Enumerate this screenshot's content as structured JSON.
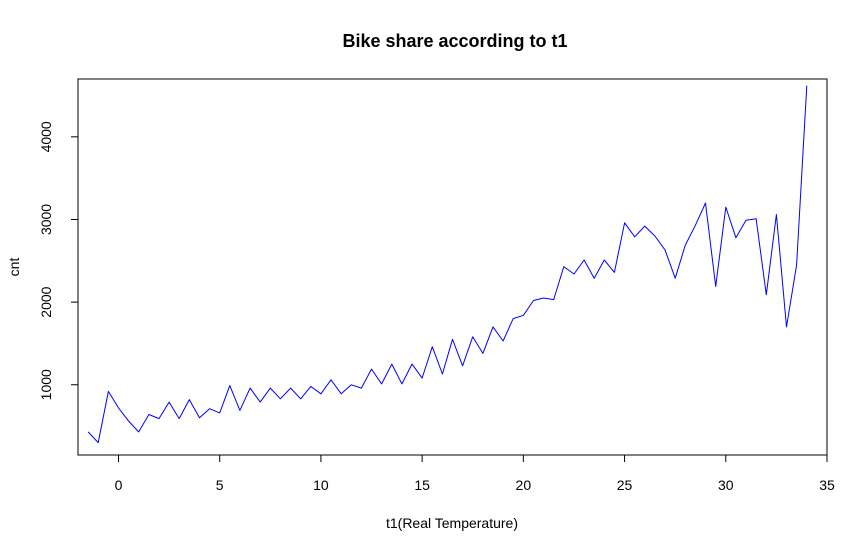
{
  "chart_data": {
    "type": "line",
    "title": "Bike share according to t1",
    "xlabel": "t1(Real Temperature)",
    "ylabel": "cnt",
    "xlim": [
      -2,
      35
    ],
    "ylim": [
      150,
      4700
    ],
    "xticks": [
      0,
      5,
      10,
      15,
      20,
      25,
      30,
      35
    ],
    "yticks": [
      1000,
      2000,
      3000,
      4000
    ],
    "grid": false,
    "series": [
      {
        "color": "#0000ff",
        "x": [
          -1.5,
          -1,
          -0.5,
          0,
          0.5,
          1,
          1.5,
          2,
          2.5,
          3,
          3.5,
          4,
          4.5,
          5,
          5.5,
          6,
          6.5,
          7,
          7.5,
          8,
          8.5,
          9,
          9.5,
          10,
          10.5,
          11,
          11.5,
          12,
          12.5,
          13,
          13.5,
          14,
          14.5,
          15,
          15.5,
          16,
          16.5,
          17,
          17.5,
          18,
          18.5,
          19,
          19.5,
          20,
          20.5,
          21,
          21.5,
          22,
          22.5,
          23,
          23.5,
          24,
          24.5,
          25,
          25.5,
          26,
          26.5,
          27,
          27.5,
          28,
          28.5,
          29,
          29.5,
          30,
          30.5,
          31,
          31.5,
          32,
          32.5,
          33,
          33.5,
          34
        ],
        "y": [
          430,
          300,
          920,
          720,
          560,
          430,
          640,
          590,
          790,
          590,
          820,
          600,
          710,
          660,
          990,
          690,
          960,
          790,
          960,
          830,
          960,
          830,
          980,
          890,
          1060,
          890,
          1000,
          960,
          1190,
          1010,
          1250,
          1010,
          1250,
          1080,
          1460,
          1130,
          1550,
          1230,
          1580,
          1380,
          1700,
          1530,
          1800,
          1840,
          2020,
          2050,
          2030,
          2430,
          2340,
          2510,
          2290,
          2510,
          2360,
          2960,
          2790,
          2920,
          2800,
          2630,
          2290,
          2690,
          2930,
          3200,
          2190,
          3150,
          2780,
          2990,
          3010,
          2090,
          3060,
          1700,
          2450,
          4620
        ]
      }
    ]
  }
}
